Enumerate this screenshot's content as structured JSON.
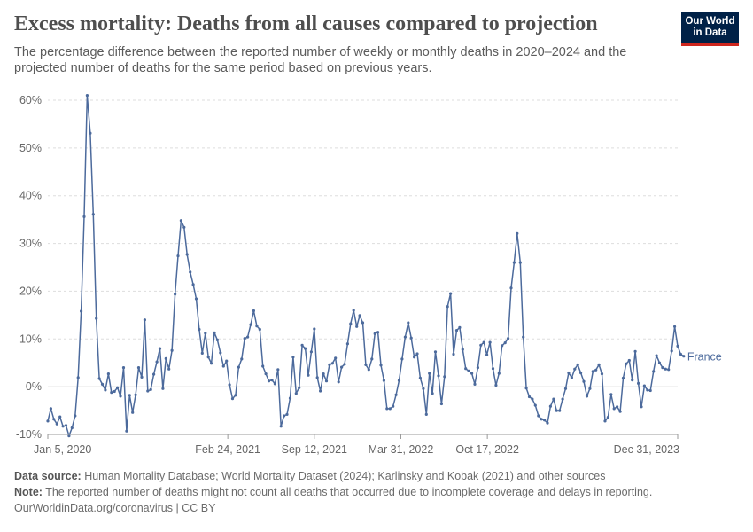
{
  "header": {
    "title": "Excess mortality: Deaths from all causes compared to projection",
    "subtitle": "The percentage difference between the reported number of weekly or monthly deaths in 2020–2024 and the projected number of deaths for the same period based on previous years.",
    "logo_line1": "Our World",
    "logo_line2": "in Data"
  },
  "footer": {
    "source_label": "Data source:",
    "source_text": " Human Mortality Database; World Mortality Dataset (2024); Karlinsky and Kobak (2021) and other sources",
    "note_label": "Note:",
    "note_text": " The reported number of deaths might not count all deaths that occurred due to incomplete coverage and delays in reporting.",
    "credit": "OurWorldinData.org/coronavirus | CC BY"
  },
  "colors": {
    "line": "#4c6a9c",
    "grid": "#dddddd",
    "axis": "#999999",
    "text": "#666666"
  },
  "chart_data": {
    "type": "line",
    "title": "Excess mortality: Deaths from all causes compared to projection",
    "ylim": [
      -10,
      60
    ],
    "yticks": [
      -10,
      0,
      10,
      20,
      30,
      40,
      50,
      60
    ],
    "ytick_labels": [
      "-10%",
      "0%",
      "10%",
      "20%",
      "30%",
      "40%",
      "50%",
      "60%"
    ],
    "xlim": [
      "2020-01-05",
      "2023-12-31"
    ],
    "xtick_labels": [
      {
        "date": "2020-01-05",
        "label": "Jan 5, 2020"
      },
      {
        "date": "2021-02-24",
        "label": "Feb 24, 2021"
      },
      {
        "date": "2021-09-12",
        "label": "Sep 12, 2021"
      },
      {
        "date": "2022-03-31",
        "label": "Mar 31, 2022"
      },
      {
        "date": "2022-10-17",
        "label": "Oct 17, 2022"
      },
      {
        "date": "2023-12-31",
        "label": "Dec 31, 2023"
      }
    ],
    "grid": true,
    "series": [
      {
        "name": "France",
        "x_start": "2020-01-05",
        "x_step_days": 7,
        "values": [
          -7.2,
          -4.6,
          -6.8,
          -7.8,
          -6.3,
          -8.3,
          -8.1,
          -10.3,
          -8.6,
          -6.1,
          1.9,
          15.8,
          35.6,
          61.0,
          53.1,
          36.1,
          14.3,
          1.7,
          0.5,
          -0.7,
          2.7,
          -1.2,
          -1.0,
          -0.2,
          -2.0,
          4.0,
          -9.3,
          -1.8,
          -5.4,
          -1.7,
          4.0,
          2.0,
          14.0,
          -0.9,
          -0.6,
          2.6,
          5.2,
          8.0,
          -0.4,
          5.9,
          3.7,
          7.6,
          19.4,
          27.4,
          34.8,
          33.4,
          27.7,
          24.0,
          21.4,
          18.4,
          12.0,
          7.0,
          11.2,
          6.2,
          4.9,
          11.3,
          9.8,
          7.1,
          4.3,
          5.4,
          0.4,
          -2.5,
          -1.8,
          4.1,
          5.8,
          10.1,
          10.4,
          13.0,
          15.9,
          12.7,
          12.0,
          4.3,
          2.7,
          1.2,
          1.4,
          0.6,
          3.6,
          -8.3,
          -6.1,
          -5.8,
          -2.4,
          6.2,
          -1.4,
          -0.2,
          8.7,
          8.0,
          2.4,
          7.3,
          12.1,
          1.9,
          -0.9,
          2.7,
          1.2,
          4.6,
          4.9,
          6.0,
          1.0,
          4.1,
          4.7,
          9.0,
          13.2,
          16.0,
          12.6,
          14.9,
          13.4,
          4.6,
          3.6,
          5.8,
          11.1,
          11.4,
          4.5,
          1.3,
          -4.6,
          -4.6,
          -4.1,
          -1.7,
          1.3,
          5.8,
          10.4,
          13.4,
          10.2,
          6.2,
          6.9,
          1.8,
          -0.4,
          -5.8,
          2.8,
          -1.4,
          7.3,
          2.3,
          -3.6,
          2.1,
          16.8,
          19.5,
          6.8,
          11.8,
          12.4,
          7.8,
          3.8,
          3.3,
          2.8,
          0.5,
          4.0,
          8.7,
          9.3,
          6.7,
          9.3,
          3.8,
          0.3,
          2.8,
          8.6,
          9.2,
          10.1,
          20.7,
          26.0,
          32.1,
          26.0,
          10.4,
          -0.3,
          -2.1,
          -2.6,
          -3.9,
          -6.1,
          -6.8,
          -7.0,
          -7.6,
          -4.1,
          -2.6,
          -5.0,
          -5.0,
          -2.6,
          -0.4,
          2.9,
          1.9,
          3.7,
          4.6,
          2.9,
          1.1,
          -2.0,
          -0.4,
          3.2,
          3.5,
          4.6,
          2.7,
          -7.2,
          -6.4,
          -1.6,
          -4.6,
          -4.2,
          -5.2,
          1.8,
          4.8,
          5.5,
          1.4,
          7.4,
          0.7,
          -4.2,
          0.2,
          -0.7,
          -0.8,
          3.2,
          6.5,
          5.0,
          4.0,
          3.7,
          3.6,
          7.5,
          12.6,
          8.5,
          6.8,
          6.4
        ]
      }
    ]
  }
}
